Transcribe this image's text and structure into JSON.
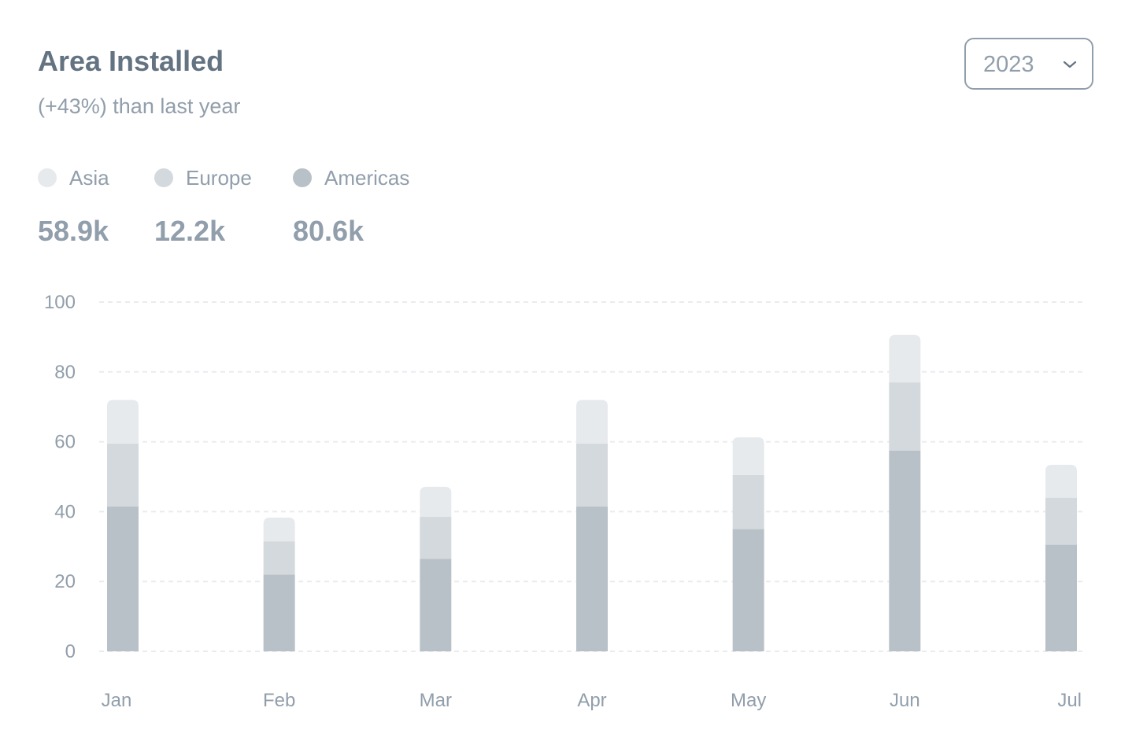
{
  "header": {
    "title": "Area Installed",
    "subtitle": "(+43%) than last year"
  },
  "year_select": {
    "value": "2023",
    "icon": "chevron-down-icon"
  },
  "legend": [
    {
      "label": "Asia",
      "value": "58.9k",
      "color": "#e7eaed"
    },
    {
      "label": "Europe",
      "value": "12.2k",
      "color": "#d4d9dd"
    },
    {
      "label": "Americas",
      "value": "80.6k",
      "color": "#b9c1c8"
    }
  ],
  "chart_data": {
    "type": "bar",
    "stacked": true,
    "categories": [
      "Jan",
      "Feb",
      "Mar",
      "Apr",
      "May",
      "Jun",
      "Jul"
    ],
    "series": [
      {
        "name": "Americas",
        "values": [
          41.5,
          22,
          26.5,
          41.5,
          35,
          57.5,
          30.5
        ]
      },
      {
        "name": "Europe",
        "values": [
          18,
          9.5,
          12,
          18,
          15.5,
          19.5,
          13.5
        ]
      },
      {
        "name": "Asia",
        "values": [
          12.5,
          6.8,
          8.6,
          12.5,
          10.8,
          13.6,
          9.4
        ]
      }
    ],
    "yticks": [
      "0",
      "20",
      "40",
      "60",
      "80",
      "100"
    ],
    "ylim": [
      0,
      100
    ],
    "grid": true,
    "grid_style": "dashed",
    "legend_placement": "top-left",
    "colors": {
      "Asia": "#e7eaed",
      "Europe": "#d4d9dd",
      "Americas": "#b9c1c8",
      "grid": "#e9ecef",
      "axis_text": "#919eab"
    }
  }
}
